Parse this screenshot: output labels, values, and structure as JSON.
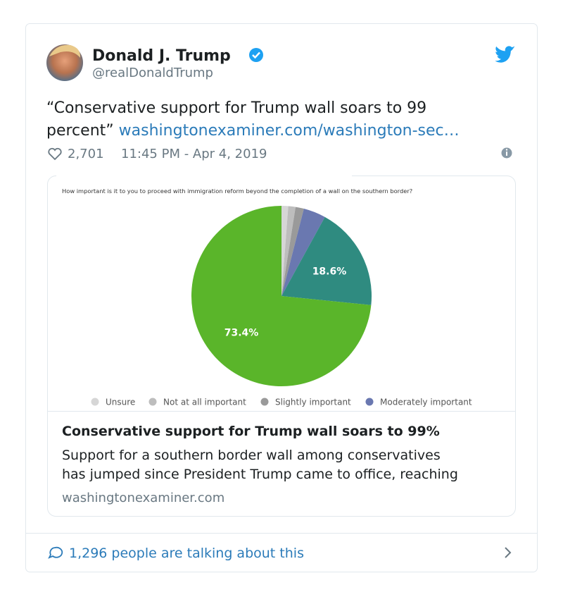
{
  "tweet": {
    "name": "Donald J. Trump",
    "handle": "@realDonaldTrump",
    "text_lines": [
      "“Conservative support for Trump wall soars to 99",
      "percent”"
    ],
    "link": "washingtonexaminer.com/washington-sec…",
    "likes": "2,701",
    "time": "11:45 PM - Apr 4, 2019",
    "card": {
      "title": "Conservative support for Trump wall soars to 99%",
      "description_lines": [
        "Support for a southern border wall among conservatives",
        "has jumped since President Trump came to office, reaching"
      ],
      "domain": "washingtonexaminer.com"
    },
    "footer": "1,296 people are talking about this"
  },
  "chart_data": {
    "type": "pie",
    "subtitle": "How important is it to you to proceed with immigration reform beyond the completion of a wall on the southern border?",
    "categories": [
      "Unsure",
      "Not at all important",
      "Slightly important",
      "Moderately important",
      null,
      null
    ],
    "values": [
      1.2,
      1.3,
      1.5,
      4.0,
      18.6,
      73.4
    ],
    "value_labels": [
      null,
      null,
      null,
      null,
      "18.6%",
      "73.4%"
    ],
    "colors": [
      "#d6d6d6",
      "#bdbdbd",
      "#9a9a9a",
      "#6a78b0",
      "#2f8b80",
      "#5ab52a"
    ]
  }
}
